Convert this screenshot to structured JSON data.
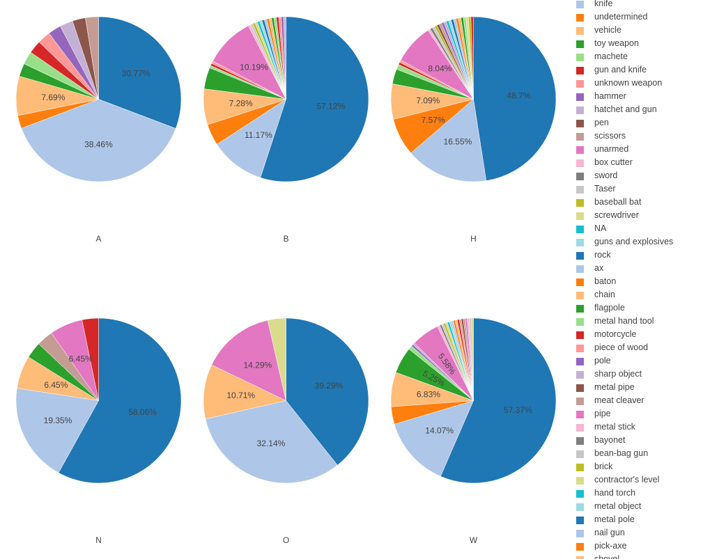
{
  "chart_data": {
    "type": "pie",
    "legend": {
      "placement": "right",
      "items": [
        {
          "label": "knife",
          "color": "#aec7e8"
        },
        {
          "label": "undetermined",
          "color": "#ff7f0e"
        },
        {
          "label": "vehicle",
          "color": "#ffbb78"
        },
        {
          "label": "toy weapon",
          "color": "#2ca02c"
        },
        {
          "label": "machete",
          "color": "#98df8a"
        },
        {
          "label": "gun and knife",
          "color": "#d62728"
        },
        {
          "label": "unknown weapon",
          "color": "#ff9896"
        },
        {
          "label": "hammer",
          "color": "#9467bd"
        },
        {
          "label": "hatchet and gun",
          "color": "#c5b0d5"
        },
        {
          "label": "pen",
          "color": "#8c564b"
        },
        {
          "label": "scissors",
          "color": "#c49c94"
        },
        {
          "label": "unarmed",
          "color": "#e377c2"
        },
        {
          "label": "box cutter",
          "color": "#f7b6d2"
        },
        {
          "label": "sword",
          "color": "#7f7f7f"
        },
        {
          "label": "Taser",
          "color": "#c7c7c7"
        },
        {
          "label": "baseball bat",
          "color": "#bcbd22"
        },
        {
          "label": "screwdriver",
          "color": "#dbdb8d"
        },
        {
          "label": "NA",
          "color": "#17becf"
        },
        {
          "label": "guns and explosives",
          "color": "#9edae5"
        },
        {
          "label": "rock",
          "color": "#1f77b4"
        },
        {
          "label": "ax",
          "color": "#aec7e8"
        },
        {
          "label": "baton",
          "color": "#ff7f0e"
        },
        {
          "label": "chain",
          "color": "#ffbb78"
        },
        {
          "label": "flagpole",
          "color": "#2ca02c"
        },
        {
          "label": "metal hand tool",
          "color": "#98df8a"
        },
        {
          "label": "motorcycle",
          "color": "#d62728"
        },
        {
          "label": "piece of wood",
          "color": "#ff9896"
        },
        {
          "label": "pole",
          "color": "#9467bd"
        },
        {
          "label": "sharp object",
          "color": "#c5b0d5"
        },
        {
          "label": "metal pipe",
          "color": "#8c564b"
        },
        {
          "label": "meat cleaver",
          "color": "#c49c94"
        },
        {
          "label": "pipe",
          "color": "#e377c2"
        },
        {
          "label": "metal stick",
          "color": "#f7b6d2"
        },
        {
          "label": "bayonet",
          "color": "#7f7f7f"
        },
        {
          "label": "bean-bag gun",
          "color": "#c7c7c7"
        },
        {
          "label": "brick",
          "color": "#bcbd22"
        },
        {
          "label": "contractor's level",
          "color": "#dbdb8d"
        },
        {
          "label": "hand torch",
          "color": "#17becf"
        },
        {
          "label": "metal object",
          "color": "#9edae5"
        },
        {
          "label": "metal pole",
          "color": "#1f77b4"
        },
        {
          "label": "nail gun",
          "color": "#aec7e8"
        },
        {
          "label": "pick-axe",
          "color": "#ff7f0e"
        },
        {
          "label": "shovel",
          "color": "#ffbb78"
        }
      ]
    },
    "pies": [
      {
        "title": "A",
        "slices": [
          {
            "color": "#1f77b4",
            "value": 30.77,
            "label": "30.77%"
          },
          {
            "color": "#aec7e8",
            "value": 38.46,
            "label": "38.46%"
          },
          {
            "color": "#ff7f0e",
            "value": 2.56,
            "label": ""
          },
          {
            "color": "#ffbb78",
            "value": 7.69,
            "label": "7.69%"
          },
          {
            "color": "#2ca02c",
            "value": 2.56,
            "label": ""
          },
          {
            "color": "#98df8a",
            "value": 2.56,
            "label": ""
          },
          {
            "color": "#d62728",
            "value": 2.56,
            "label": ""
          },
          {
            "color": "#ff9896",
            "value": 2.56,
            "label": ""
          },
          {
            "color": "#9467bd",
            "value": 2.56,
            "label": ""
          },
          {
            "color": "#c5b0d5",
            "value": 2.56,
            "label": ""
          },
          {
            "color": "#8c564b",
            "value": 2.56,
            "label": ""
          },
          {
            "color": "#c49c94",
            "value": 2.56,
            "label": ""
          }
        ]
      },
      {
        "title": "B",
        "slices": [
          {
            "color": "#1f77b4",
            "value": 57.12,
            "label": "57.12%"
          },
          {
            "color": "#aec7e8",
            "value": 11.17,
            "label": "11.17%"
          },
          {
            "color": "#ff7f0e",
            "value": 4.37,
            "label": ""
          },
          {
            "color": "#ffbb78",
            "value": 7.28,
            "label": "7.28%"
          },
          {
            "color": "#2ca02c",
            "value": 4.37,
            "label": ""
          },
          {
            "color": "#98df8a",
            "value": 0.49,
            "label": ""
          },
          {
            "color": "#d62728",
            "value": 0.49,
            "label": ""
          },
          {
            "color": "#ff9896",
            "value": 0.49,
            "label": ""
          },
          {
            "color": "#e377c2",
            "value": 10.19,
            "label": "10.19%"
          },
          {
            "color": "#f7b6d2",
            "value": 0.49,
            "label": ""
          },
          {
            "color": "#c7c7c7",
            "value": 0.49,
            "label": ""
          },
          {
            "color": "#bcbd22",
            "value": 0.49,
            "label": ""
          },
          {
            "color": "#dbdb8d",
            "value": 0.49,
            "label": ""
          },
          {
            "color": "#17becf",
            "value": 0.49,
            "label": ""
          },
          {
            "color": "#9edae5",
            "value": 0.49,
            "label": ""
          },
          {
            "color": "#1f77b4",
            "value": 0.49,
            "label": ""
          },
          {
            "color": "#aec7e8",
            "value": 0.49,
            "label": ""
          },
          {
            "color": "#ff7f0e",
            "value": 0.49,
            "label": ""
          },
          {
            "color": "#ffbb78",
            "value": 0.49,
            "label": ""
          },
          {
            "color": "#2ca02c",
            "value": 0.49,
            "label": ""
          },
          {
            "color": "#98df8a",
            "value": 0.49,
            "label": ""
          },
          {
            "color": "#d62728",
            "value": 0.49,
            "label": ""
          },
          {
            "color": "#ff9896",
            "value": 0.49,
            "label": ""
          },
          {
            "color": "#9467bd",
            "value": 0.49,
            "label": ""
          },
          {
            "color": "#c5b0d5",
            "value": 0.49,
            "label": ""
          }
        ]
      },
      {
        "title": "H",
        "slices": [
          {
            "color": "#1f77b4",
            "value": 48.7,
            "label": "48.7%"
          },
          {
            "color": "#aec7e8",
            "value": 16.55,
            "label": "16.55%"
          },
          {
            "color": "#ff7f0e",
            "value": 7.57,
            "label": "7.57%"
          },
          {
            "color": "#ffbb78",
            "value": 7.09,
            "label": "7.09%"
          },
          {
            "color": "#2ca02c",
            "value": 3.0,
            "label": ""
          },
          {
            "color": "#98df8a",
            "value": 1.0,
            "label": ""
          },
          {
            "color": "#d62728",
            "value": 0.5,
            "label": ""
          },
          {
            "color": "#ff9896",
            "value": 0.5,
            "label": ""
          },
          {
            "color": "#e377c2",
            "value": 8.04,
            "label": "8.04%"
          },
          {
            "color": "#f7b6d2",
            "value": 0.5,
            "label": ""
          },
          {
            "color": "#7f7f7f",
            "value": 0.5,
            "label": ""
          },
          {
            "color": "#c7c7c7",
            "value": 0.5,
            "label": ""
          },
          {
            "color": "#bcbd22",
            "value": 0.5,
            "label": ""
          },
          {
            "color": "#8c564b",
            "value": 0.5,
            "label": ""
          },
          {
            "color": "#c49c94",
            "value": 0.5,
            "label": ""
          },
          {
            "color": "#9467bd",
            "value": 0.5,
            "label": ""
          },
          {
            "color": "#c5b0d5",
            "value": 0.5,
            "label": ""
          },
          {
            "color": "#17becf",
            "value": 0.5,
            "label": ""
          },
          {
            "color": "#9edae5",
            "value": 0.5,
            "label": ""
          },
          {
            "color": "#1f77b4",
            "value": 0.5,
            "label": ""
          },
          {
            "color": "#aec7e8",
            "value": 0.5,
            "label": ""
          },
          {
            "color": "#ff7f0e",
            "value": 0.5,
            "label": ""
          },
          {
            "color": "#ffbb78",
            "value": 0.5,
            "label": ""
          },
          {
            "color": "#2ca02c",
            "value": 0.5,
            "label": ""
          },
          {
            "color": "#98df8a",
            "value": 0.5,
            "label": ""
          },
          {
            "color": "#dbdb8d",
            "value": 0.5,
            "label": ""
          },
          {
            "color": "#bcbd22",
            "value": 0.5,
            "label": ""
          },
          {
            "color": "#d62728",
            "value": 0.5,
            "label": ""
          }
        ]
      },
      {
        "title": "N",
        "slices": [
          {
            "color": "#1f77b4",
            "value": 58.06,
            "label": "58.06%"
          },
          {
            "color": "#aec7e8",
            "value": 19.35,
            "label": "19.35%"
          },
          {
            "color": "#ffbb78",
            "value": 6.45,
            "label": "6.45%"
          },
          {
            "color": "#2ca02c",
            "value": 3.23,
            "label": ""
          },
          {
            "color": "#c49c94",
            "value": 3.23,
            "label": ""
          },
          {
            "color": "#e377c2",
            "value": 6.45,
            "label": "6.45%"
          },
          {
            "color": "#d62728",
            "value": 3.23,
            "label": ""
          }
        ]
      },
      {
        "title": "O",
        "slices": [
          {
            "color": "#1f77b4",
            "value": 39.29,
            "label": "39.29%"
          },
          {
            "color": "#aec7e8",
            "value": 32.14,
            "label": "32.14%"
          },
          {
            "color": "#ffbb78",
            "value": 10.71,
            "label": "10.71%"
          },
          {
            "color": "#e377c2",
            "value": 14.29,
            "label": "14.29%"
          },
          {
            "color": "#dbdb8d",
            "value": 3.57,
            "label": ""
          }
        ]
      },
      {
        "title": "W",
        "slices": [
          {
            "color": "#1f77b4",
            "value": 57.37,
            "label": "57.37%"
          },
          {
            "color": "#aec7e8",
            "value": 14.07,
            "label": "14.07%"
          },
          {
            "color": "#ff7f0e",
            "value": 3.5,
            "label": ""
          },
          {
            "color": "#ffbb78",
            "value": 6.83,
            "label": "6.83%"
          },
          {
            "color": "#2ca02c",
            "value": 5.25,
            "label": "5.25%"
          },
          {
            "color": "#98df8a",
            "value": 0.8,
            "label": ""
          },
          {
            "color": "#9467bd",
            "value": 0.4,
            "label": ""
          },
          {
            "color": "#c5b0d5",
            "value": 0.4,
            "label": ""
          },
          {
            "color": "#e377c2",
            "value": 5.58,
            "label": "5.58%"
          },
          {
            "color": "#f7b6d2",
            "value": 0.5,
            "label": ""
          },
          {
            "color": "#7f7f7f",
            "value": 0.4,
            "label": ""
          },
          {
            "color": "#c7c7c7",
            "value": 0.4,
            "label": ""
          },
          {
            "color": "#bcbd22",
            "value": 0.4,
            "label": ""
          },
          {
            "color": "#dbdb8d",
            "value": 0.4,
            "label": ""
          },
          {
            "color": "#17becf",
            "value": 0.4,
            "label": ""
          },
          {
            "color": "#9edae5",
            "value": 0.4,
            "label": ""
          },
          {
            "color": "#aec7e8",
            "value": 0.4,
            "label": ""
          },
          {
            "color": "#ff7f0e",
            "value": 0.4,
            "label": ""
          },
          {
            "color": "#ffbb78",
            "value": 0.4,
            "label": ""
          },
          {
            "color": "#d62728",
            "value": 0.4,
            "label": ""
          },
          {
            "color": "#ff9896",
            "value": 0.4,
            "label": ""
          },
          {
            "color": "#8c564b",
            "value": 0.4,
            "label": ""
          },
          {
            "color": "#c49c94",
            "value": 0.4,
            "label": ""
          },
          {
            "color": "#e377c2",
            "value": 0.4,
            "label": ""
          },
          {
            "color": "#f7b6d2",
            "value": 0.4,
            "label": ""
          },
          {
            "color": "#c7c7c7",
            "value": 0.4,
            "label": ""
          },
          {
            "color": "#dbdb8d",
            "value": 0.4,
            "label": ""
          }
        ]
      }
    ]
  }
}
